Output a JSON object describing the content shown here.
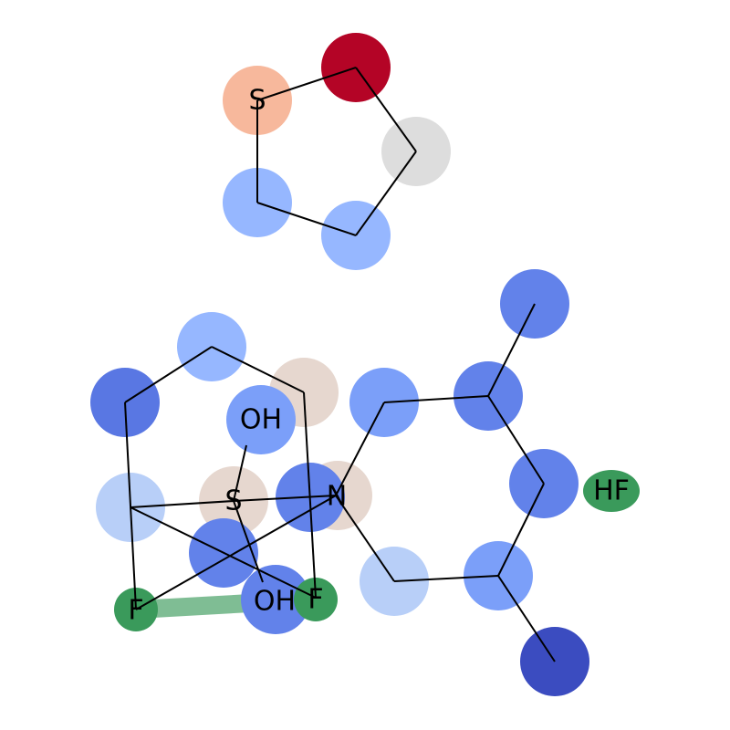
{
  "diagram": {
    "labels": {
      "ring_sulfur": "S",
      "hydroxyl_top": "OH",
      "center_sulfur": "S",
      "nitrogen": "N",
      "fluorine_left": "F",
      "hydroxyl_bottom": "OH",
      "fluorine_right": "F",
      "hydrogen_fluoride": "HF"
    },
    "colors": {
      "bond": "#000000",
      "label_text": "#000000",
      "highlight_bond": "#3a9a5b",
      "atom_palette": {
        "deep_red": "#b40426",
        "salmon": "#f7b89c",
        "light_grey": "#dddddd",
        "beige": "#e6d7cf",
        "pale_blue": "#b8cff8",
        "light_blue": "#96b7ff",
        "mid_blue": "#7b9ff9",
        "blue": "#6282ea",
        "strong_blue": "#5977e3",
        "dark_blue": "#3b4cc0",
        "green": "#3a9a5b"
      }
    }
  }
}
